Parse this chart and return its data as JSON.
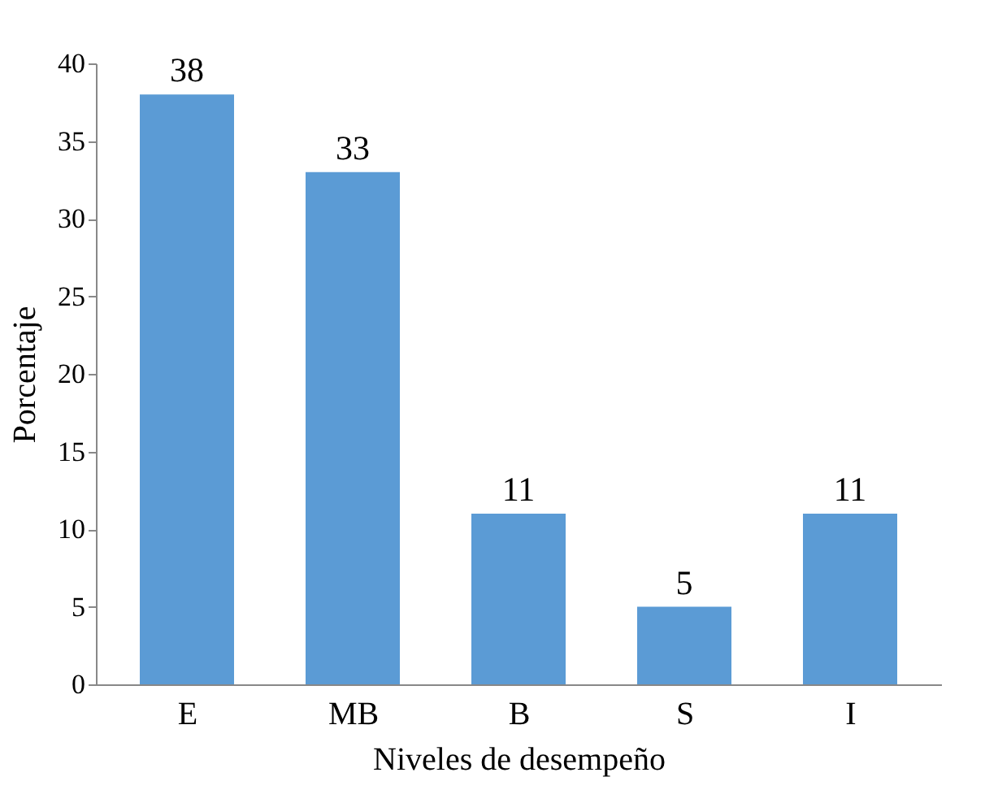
{
  "chart_data": {
    "type": "bar",
    "xlabel": "Niveles de desempeño",
    "ylabel": "Porcentaje",
    "categories": [
      "E",
      "MB",
      "B",
      "S",
      "I"
    ],
    "values": [
      38,
      33,
      11,
      5,
      11
    ],
    "color": "#5b9bd5",
    "ylim": [
      0,
      40
    ],
    "yticks": [
      0,
      5,
      10,
      15,
      20,
      25,
      30,
      35,
      40
    ],
    "grid": false,
    "data_labels": true
  }
}
